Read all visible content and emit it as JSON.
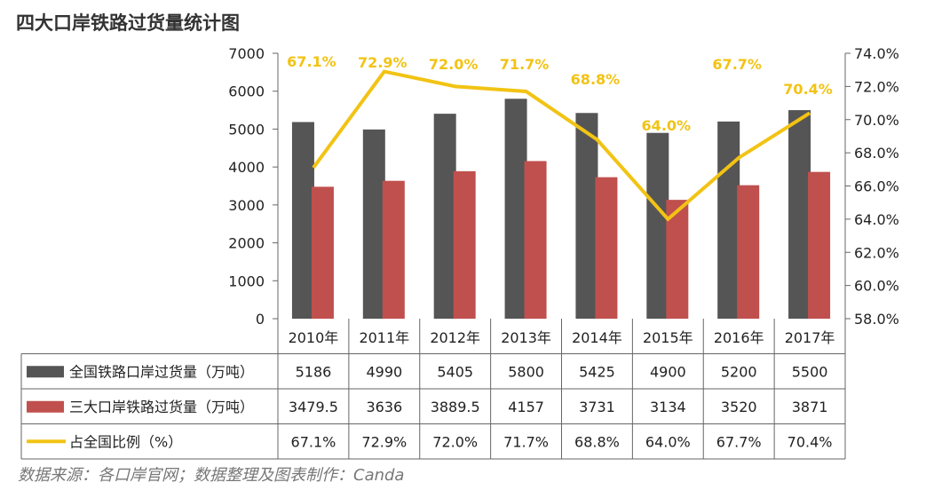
{
  "title": "四大口岸铁路过货量统计图",
  "source_note": "数据来源：各口岸官网；数据整理及图表制作：Canda",
  "chart_data": {
    "type": "bar",
    "categories": [
      "2010年",
      "2011年",
      "2012年",
      "2013年",
      "2014年",
      "2015年",
      "2016年",
      "2017年"
    ],
    "series": [
      {
        "name": "全国铁路口岸过货量（万吨）",
        "type": "bar",
        "axis": "left",
        "color": "#555555",
        "values": [
          5186,
          4990,
          5405,
          5800,
          5425,
          4900,
          5200,
          5500
        ],
        "labels": [
          "5186",
          "4990",
          "5405",
          "5800",
          "5425",
          "4900",
          "5200",
          "5500"
        ]
      },
      {
        "name": "三大口岸铁路过货量（万吨）",
        "type": "bar",
        "axis": "left",
        "color": "#c0504d",
        "values": [
          3479.5,
          3636,
          3889.5,
          4157,
          3731,
          3134,
          3520,
          3871
        ],
        "labels": [
          "3479.5",
          "3636",
          "3889.5",
          "4157",
          "3731",
          "3134",
          "3520",
          "3871"
        ]
      },
      {
        "name": "占全国比例（%）",
        "type": "line",
        "axis": "right",
        "color": "#f2c314",
        "values": [
          67.1,
          72.9,
          72.0,
          71.7,
          68.8,
          64.0,
          67.7,
          70.4
        ],
        "labels": [
          "67.1%",
          "72.9%",
          "72.0%",
          "71.7%",
          "68.8%",
          "64.0%",
          "67.7%",
          "70.4%"
        ]
      }
    ],
    "left_axis": {
      "range": [
        0,
        7000
      ],
      "ticks": [
        "0",
        "1000",
        "2000",
        "3000",
        "4000",
        "5000",
        "6000",
        "7000"
      ]
    },
    "right_axis": {
      "range": [
        58,
        74
      ],
      "ticks": [
        "58.0%",
        "60.0%",
        "62.0%",
        "64.0%",
        "66.0%",
        "68.0%",
        "70.0%",
        "72.0%",
        "74.0%"
      ]
    },
    "grid": false,
    "legend": "data-table-below"
  }
}
